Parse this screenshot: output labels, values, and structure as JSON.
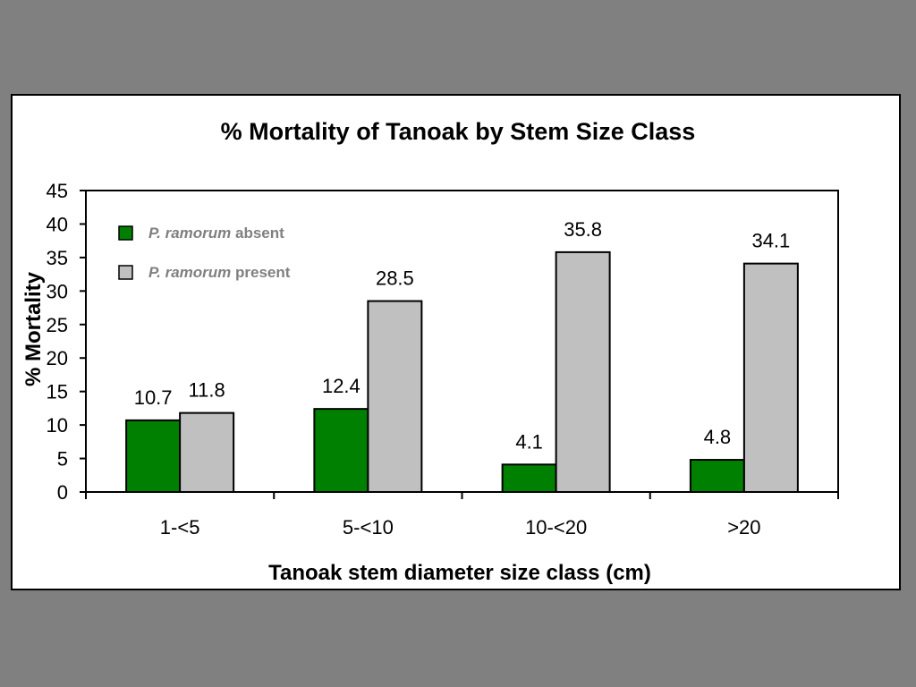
{
  "chart_data": {
    "type": "bar",
    "title": "% Mortality of Tanoak by Stem Size Class",
    "xlabel": "Tanoak stem diameter size class (cm)",
    "ylabel": "% Mortality",
    "ylim": [
      0,
      45
    ],
    "yticks": [
      0,
      5,
      10,
      15,
      20,
      25,
      30,
      35,
      40,
      45
    ],
    "categories": [
      "1-<5",
      "5-<10",
      "10-<20",
      ">20"
    ],
    "legend_position": "top-left",
    "grid": false,
    "series": [
      {
        "name_italic": "P. ramorum",
        "name_rest": "absent",
        "color": "#008000",
        "values": [
          10.7,
          12.4,
          4.1,
          4.8
        ],
        "labels": [
          "10.7",
          "12.4",
          "4.1",
          "4.8"
        ]
      },
      {
        "name_italic": "P. ramorum",
        "name_rest": "present",
        "color": "#c0c0c0",
        "values": [
          11.8,
          28.5,
          35.8,
          34.1
        ],
        "labels": [
          "11.8",
          "28.5",
          "35.8",
          "34.1"
        ]
      }
    ]
  }
}
